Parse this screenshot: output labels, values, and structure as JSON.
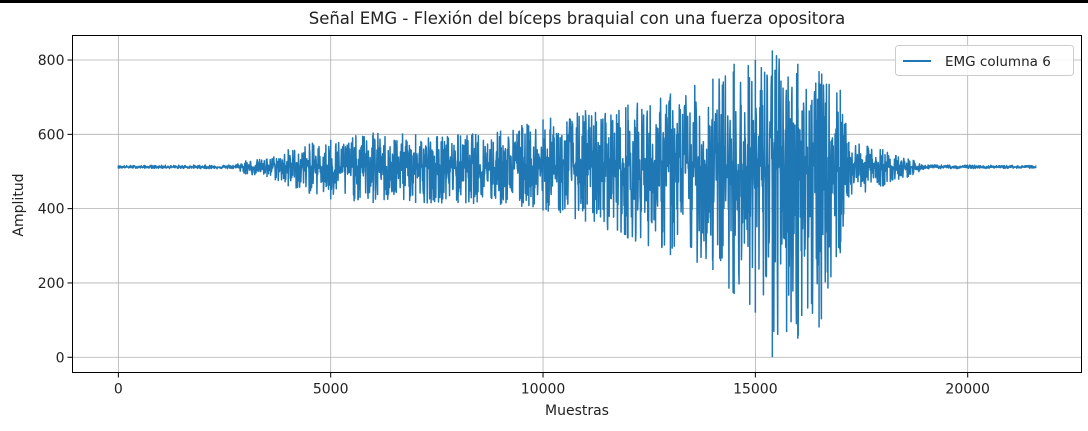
{
  "chart_data": {
    "type": "line",
    "title": "Señal EMG - Flexión del bíceps braquial con una fuerza opositora",
    "xlabel": "Muestras",
    "ylabel": "Amplitud",
    "xlim": [
      -1080,
      22680
    ],
    "ylim": [
      -41,
      866
    ],
    "xticks": [
      0,
      5000,
      10000,
      15000,
      20000
    ],
    "xtick_labels": [
      "0",
      "5000",
      "10000",
      "15000",
      "20000"
    ],
    "yticks": [
      0,
      200,
      400,
      600,
      800
    ],
    "ytick_labels": [
      "0",
      "200",
      "400",
      "600",
      "800"
    ],
    "grid": true,
    "legend_position": "top-right",
    "color": "#1f77b4",
    "series": [
      {
        "name": "EMG columna 6",
        "baseline": 512,
        "envelope": [
          {
            "x": 0,
            "max": 516,
            "min": 509
          },
          {
            "x": 2700,
            "max": 518,
            "min": 507
          },
          {
            "x": 3000,
            "max": 530,
            "min": 492
          },
          {
            "x": 3500,
            "max": 535,
            "min": 485
          },
          {
            "x": 4000,
            "max": 560,
            "min": 460
          },
          {
            "x": 4500,
            "max": 575,
            "min": 440
          },
          {
            "x": 5000,
            "max": 585,
            "min": 425
          },
          {
            "x": 6000,
            "max": 605,
            "min": 415
          },
          {
            "x": 7000,
            "max": 600,
            "min": 415
          },
          {
            "x": 8000,
            "max": 600,
            "min": 415
          },
          {
            "x": 9000,
            "max": 610,
            "min": 410
          },
          {
            "x": 9500,
            "max": 625,
            "min": 405
          },
          {
            "x": 10000,
            "max": 640,
            "min": 395
          },
          {
            "x": 11000,
            "max": 665,
            "min": 365
          },
          {
            "x": 12000,
            "max": 680,
            "min": 320
          },
          {
            "x": 13000,
            "max": 710,
            "min": 275
          },
          {
            "x": 14000,
            "max": 750,
            "min": 235
          },
          {
            "x": 14500,
            "max": 790,
            "min": 170
          },
          {
            "x": 15000,
            "max": 800,
            "min": 120
          },
          {
            "x": 15400,
            "max": 826,
            "min": 0
          },
          {
            "x": 16000,
            "max": 790,
            "min": 50
          },
          {
            "x": 16500,
            "max": 770,
            "min": 80
          },
          {
            "x": 17000,
            "max": 720,
            "min": 280
          },
          {
            "x": 17200,
            "max": 580,
            "min": 430
          },
          {
            "x": 18000,
            "max": 560,
            "min": 460
          },
          {
            "x": 18600,
            "max": 535,
            "min": 485
          },
          {
            "x": 19000,
            "max": 518,
            "min": 507
          },
          {
            "x": 21600,
            "max": 516,
            "min": 509
          }
        ]
      }
    ]
  }
}
